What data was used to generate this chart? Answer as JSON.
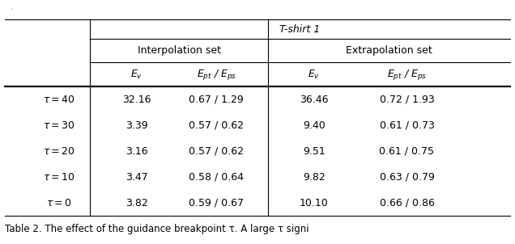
{
  "title": "T-shirt 1",
  "col_groups": [
    "Interpolation set",
    "Extrapolation set"
  ],
  "col_headers": [
    "$E_v$",
    "$E_{pt}$ / $E_{ps}$",
    "$E_v$",
    "$E_{pt}$ / $E_{ps}$"
  ],
  "row_labels": [
    "$\\tau = 40$",
    "$\\tau = 30$",
    "$\\tau = 20$",
    "$\\tau = 10$",
    "$\\tau = 0$"
  ],
  "data": [
    [
      "32.16",
      "0.67 / 1.29",
      "36.46",
      "0.72 / 1.93"
    ],
    [
      "3.39",
      "0.57 / 0.62",
      "9.40",
      "0.61 / 0.73"
    ],
    [
      "3.16",
      "0.57 / 0.62",
      "9.51",
      "0.61 / 0.75"
    ],
    [
      "3.47",
      "0.58 / 0.64",
      "9.82",
      "0.63 / 0.79"
    ],
    [
      "3.82",
      "0.59 / 0.67",
      "10.10",
      "0.66 / 0.86"
    ]
  ],
  "bg_color": "#ffffff",
  "text_color": "#000000",
  "font_size": 9.0,
  "caption_font_size": 8.5,
  "top_marker": ".",
  "caption": "Table 2. The effect of the guidance breakpoint τ. A large τ signi"
}
